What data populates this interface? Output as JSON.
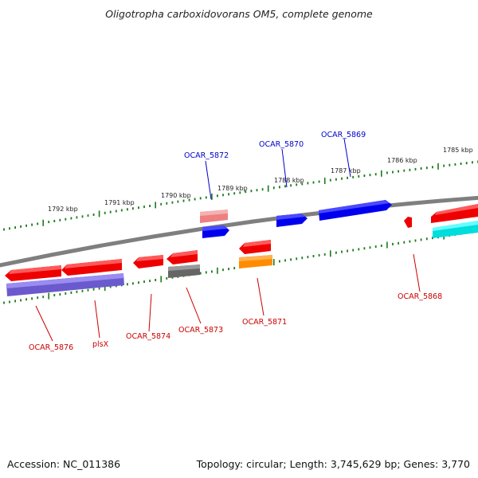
{
  "title": "Oligotropha carboxidovorans OM5, complete genome",
  "footer": {
    "accession": "Accession: NC_011386",
    "summary": "Topology: circular; Length: 3,745,629 bp; Genes: 3,770"
  },
  "colors": {
    "backbone": "#808080",
    "tick": "#1c7a1c",
    "gene_red": "#ee0000",
    "gene_pink": "#ee8080",
    "gene_blue": "#0000ee",
    "gene_cyan": "#00dddd",
    "gene_purple": "#6a5acd",
    "gene_gray": "#666666",
    "gene_orange": "#ff8c00",
    "label_blue": "#0000cc",
    "label_red": "#cc0000"
  },
  "scale_labels": {
    "outer": [
      "1792 kbp",
      "1791 kbp",
      "1790 kbp",
      "1789 kbp",
      "1788 kbp",
      "1787 kbp",
      "1786 kbp",
      "1785 kbp"
    ]
  },
  "gene_labels": {
    "top": [
      "OCAR_5872",
      "OCAR_5870",
      "OCAR_5869"
    ],
    "bottom": [
      "OCAR_5876",
      "plsX",
      "OCAR_5874",
      "OCAR_5873",
      "OCAR_5871",
      "OCAR_5868"
    ]
  }
}
